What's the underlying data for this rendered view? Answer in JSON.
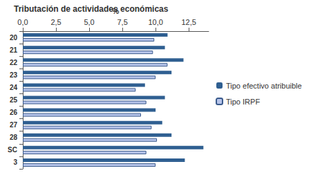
{
  "chart_data": {
    "type": "bar",
    "orientation": "horizontal",
    "title": "Tributación de actividades económicas",
    "x_label": "%",
    "categories": [
      "20",
      "21",
      "22",
      "23",
      "24",
      "25",
      "26",
      "27",
      "28",
      "SC",
      "3"
    ],
    "series": [
      {
        "name": "Tipo efectivo atribuible",
        "color": "#2f5f91",
        "values": [
          10.9,
          10.7,
          12.1,
          11.2,
          9.2,
          10.7,
          10.0,
          10.5,
          11.2,
          13.6,
          12.2
        ]
      },
      {
        "name": "Tipo IRPF",
        "color": "#b6c4ea",
        "values": [
          9.9,
          9.8,
          10.9,
          10.0,
          8.5,
          9.3,
          8.9,
          9.7,
          10.1,
          9.3,
          10.0
        ]
      }
    ],
    "xlim": [
      0,
      14
    ],
    "xticks": [
      {
        "value": 0,
        "label": "0,0"
      },
      {
        "value": 2.5,
        "label": "2,5"
      },
      {
        "value": 5,
        "label": "5,0"
      },
      {
        "value": 7.5,
        "label": "7,5"
      },
      {
        "value": 10,
        "label": "10,0"
      },
      {
        "value": 12.5,
        "label": "12,5"
      }
    ],
    "grid": false,
    "legend": "right"
  }
}
